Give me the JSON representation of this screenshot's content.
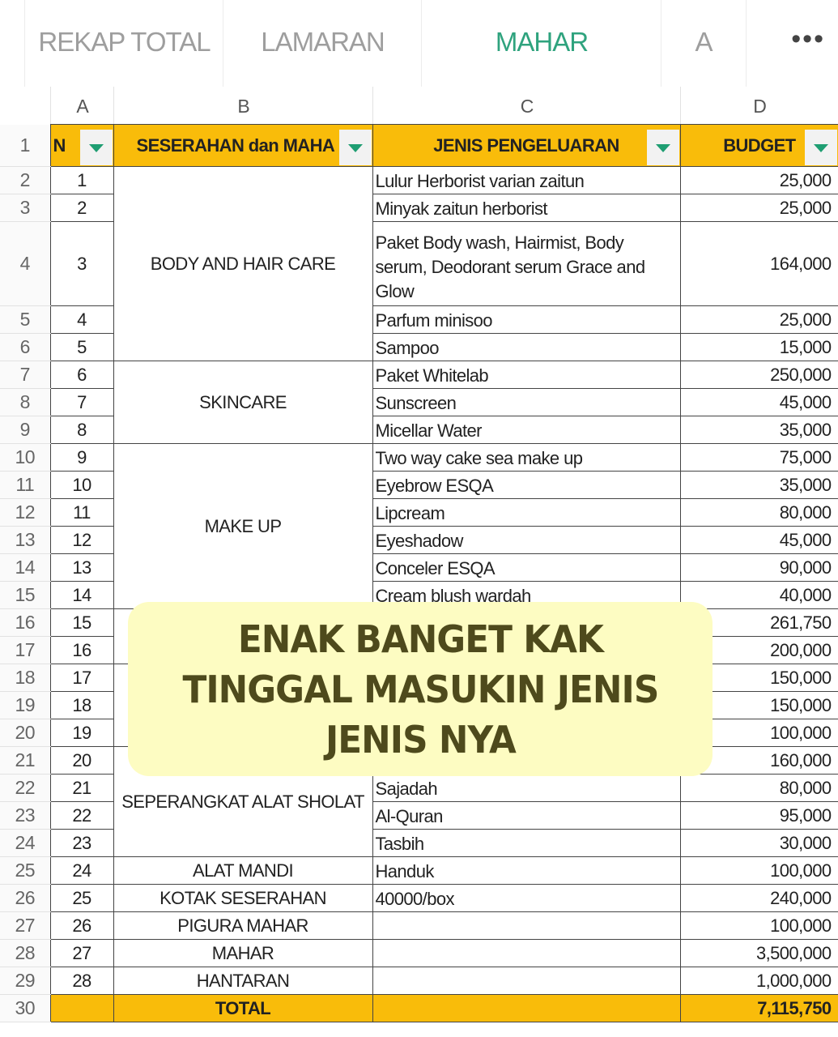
{
  "tabs": [
    {
      "label": "REKAP TOTAL",
      "active": false
    },
    {
      "label": "LAMARAN",
      "active": false
    },
    {
      "label": "MAHAR SESERAHAN",
      "active": true
    },
    {
      "label": "A",
      "active": false
    }
  ],
  "more_label": "•••",
  "columns": [
    "A",
    "B",
    "C",
    "D"
  ],
  "header": {
    "row": "1",
    "a": "N",
    "b": "SESERAHAN dan MAHA",
    "c": "JENIS PENGELUARAN",
    "d": "BUDGET"
  },
  "colors": {
    "header_fill": "#f9bc0a",
    "active_tab": "#2fa37e",
    "filter_arrow": "#1f9e72",
    "overlay_bg": "#fdfcc2",
    "overlay_text": "#4e4a1c"
  },
  "groups": [
    {
      "label": "BODY AND HAIR CARE",
      "count": 5
    },
    {
      "label": "SKINCARE",
      "count": 3
    },
    {
      "label": "MAKE UP",
      "count": 6
    },
    {
      "label": "",
      "count": 2
    },
    {
      "label": "",
      "count": 3
    },
    {
      "label": "SEPERANGKAT ALAT SHOLAT",
      "count": 4
    },
    {
      "label": "ALAT MANDI",
      "count": 1
    },
    {
      "label": "KOTAK SESERAHAN",
      "count": 1
    },
    {
      "label": "PIGURA MAHAR",
      "count": 1
    },
    {
      "label": "MAHAR",
      "count": 1
    },
    {
      "label": "HANTARAN",
      "count": 1
    }
  ],
  "rows": [
    {
      "row": "2",
      "no": "1",
      "item": "Lulur Herborist varian zaitun",
      "budget": "25,000"
    },
    {
      "row": "3",
      "no": "2",
      "item": "Minyak zaitun herborist",
      "budget": "25,000"
    },
    {
      "row": "4",
      "no": "3",
      "item": "Paket Body wash, Hairmist, Body serum, Deodorant serum Grace and Glow",
      "budget": "164,000"
    },
    {
      "row": "5",
      "no": "4",
      "item": "Parfum minisoo",
      "budget": "25,000"
    },
    {
      "row": "6",
      "no": "5",
      "item": "Sampoo",
      "budget": "15,000"
    },
    {
      "row": "7",
      "no": "6",
      "item": "Paket Whitelab",
      "budget": "250,000"
    },
    {
      "row": "8",
      "no": "7",
      "item": "Sunscreen",
      "budget": "45,000"
    },
    {
      "row": "9",
      "no": "8",
      "item": "Micellar Water",
      "budget": "35,000"
    },
    {
      "row": "10",
      "no": "9",
      "item": "Two way cake sea make up",
      "budget": "75,000"
    },
    {
      "row": "11",
      "no": "10",
      "item": "Eyebrow ESQA",
      "budget": "35,000"
    },
    {
      "row": "12",
      "no": "11",
      "item": "Lipcream",
      "budget": "80,000"
    },
    {
      "row": "13",
      "no": "12",
      "item": "Eyeshadow",
      "budget": "45,000"
    },
    {
      "row": "14",
      "no": "13",
      "item": "Conceler ESQA",
      "budget": "90,000"
    },
    {
      "row": "15",
      "no": "14",
      "item": "Cream blush wardah",
      "budget": "40,000"
    },
    {
      "row": "16",
      "no": "15",
      "item": "",
      "budget": "261,750"
    },
    {
      "row": "17",
      "no": "16",
      "item": "",
      "budget": "200,000"
    },
    {
      "row": "18",
      "no": "17",
      "item": "",
      "budget": "150,000"
    },
    {
      "row": "19",
      "no": "18",
      "item": "",
      "budget": "150,000"
    },
    {
      "row": "20",
      "no": "19",
      "item": "",
      "budget": "100,000"
    },
    {
      "row": "21",
      "no": "20",
      "item": "",
      "budget": "160,000"
    },
    {
      "row": "22",
      "no": "21",
      "item": "Sajadah",
      "budget": "80,000"
    },
    {
      "row": "23",
      "no": "22",
      "item": "Al-Quran",
      "budget": "95,000"
    },
    {
      "row": "24",
      "no": "23",
      "item": "Tasbih",
      "budget": "30,000"
    },
    {
      "row": "25",
      "no": "24",
      "item": "Handuk",
      "budget": "100,000"
    },
    {
      "row": "26",
      "no": "25",
      "item": "40000/box",
      "budget": "240,000"
    },
    {
      "row": "27",
      "no": "26",
      "item": "",
      "budget": "100,000"
    },
    {
      "row": "28",
      "no": "27",
      "item": "",
      "budget": "3,500,000"
    },
    {
      "row": "29",
      "no": "28",
      "item": "",
      "budget": "1,000,000"
    }
  ],
  "total": {
    "row": "30",
    "label": "TOTAL",
    "value": "7,115,750"
  },
  "overlay_text": "ENAK BANGET KAK\nTINGGAL MASUKIN JENIS\nJENIS NYA"
}
